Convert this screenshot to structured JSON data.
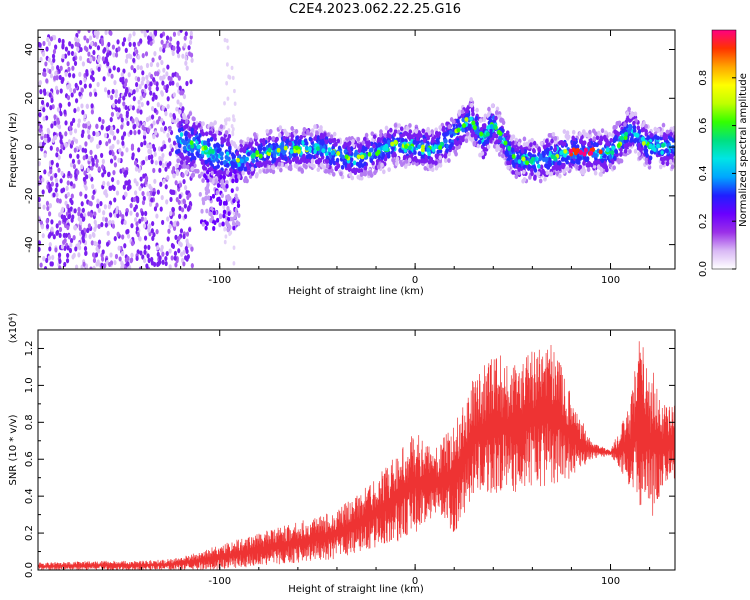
{
  "title": "C2E4.2023.062.22.25.G16",
  "chart_data": [
    {
      "type": "heatmap",
      "title": "C2E4.2023.062.22.25.G16",
      "xlabel": "Height of straight line (km)",
      "ylabel": "Frequency (Hz)",
      "xlim": [
        -193,
        133
      ],
      "ylim": [
        -50,
        48
      ],
      "x_ticks": [
        -100,
        0,
        100
      ],
      "y_ticks": [
        -40,
        -20,
        0,
        20,
        40
      ],
      "colorbar": {
        "label": "Normalized spectral amplitude",
        "range": [
          0,
          1
        ],
        "ticks": [
          "0.0",
          "0.2",
          "0.4",
          "0.6",
          "0.8"
        ],
        "colormap": [
          "#ffffff",
          "#d9b8f5",
          "#9b30e8",
          "#6a00ff",
          "#1f1fff",
          "#00a6ff",
          "#00e5e5",
          "#00e080",
          "#33ff00",
          "#bfff00",
          "#ffff00",
          "#ffa500",
          "#ff3300",
          "#ff0080"
        ]
      },
      "description_noise_region": [
        -193,
        -118
      ],
      "ridge": {
        "x": [
          -120,
          -110,
          -100,
          -90,
          -80,
          -70,
          -60,
          -50,
          -40,
          -30,
          -20,
          -10,
          0,
          10,
          20,
          28,
          35,
          40,
          50,
          60,
          70,
          80,
          90,
          100,
          105,
          110,
          120,
          133
        ],
        "y": [
          3,
          0,
          -4,
          -6,
          -3,
          -1,
          -1,
          0,
          -3,
          -5,
          -2,
          1,
          0,
          -1,
          5,
          12,
          3,
          10,
          -4,
          -6,
          -4,
          -2,
          -2,
          -2,
          2,
          7,
          0,
          0
        ]
      }
    },
    {
      "type": "line",
      "xlabel": "Height of straight line (km)",
      "ylabel": "SNR (10 * v/v)",
      "y_scale_label": "(x10⁴)",
      "xlim": [
        -193,
        133
      ],
      "ylim": [
        0,
        1.3
      ],
      "x_ticks": [
        -100,
        0,
        100
      ],
      "y_ticks": [
        "0.0",
        "0.2",
        "0.4",
        "0.6",
        "0.8",
        "1.0",
        "1.2"
      ],
      "color": "#ee3333",
      "envelope": {
        "x": [
          -193,
          -160,
          -140,
          -125,
          -110,
          -100,
          -80,
          -60,
          -40,
          -25,
          -10,
          0,
          10,
          20,
          30,
          40,
          50,
          60,
          70,
          80,
          90,
          100,
          110,
          115,
          120,
          125,
          133
        ],
        "low": [
          0.0,
          0.0,
          0.0,
          0.0,
          0.0,
          0.0,
          0.02,
          0.04,
          0.06,
          0.1,
          0.15,
          0.2,
          0.3,
          0.2,
          0.38,
          0.4,
          0.42,
          0.44,
          0.46,
          0.5,
          0.6,
          0.62,
          0.45,
          0.3,
          0.25,
          0.4,
          0.5
        ],
        "high": [
          0.04,
          0.05,
          0.05,
          0.06,
          0.1,
          0.14,
          0.2,
          0.26,
          0.33,
          0.45,
          0.62,
          0.75,
          0.65,
          0.8,
          1.05,
          1.2,
          1.1,
          1.2,
          1.25,
          0.95,
          0.7,
          0.65,
          0.9,
          1.28,
          1.15,
          0.95,
          0.9
        ]
      }
    }
  ]
}
